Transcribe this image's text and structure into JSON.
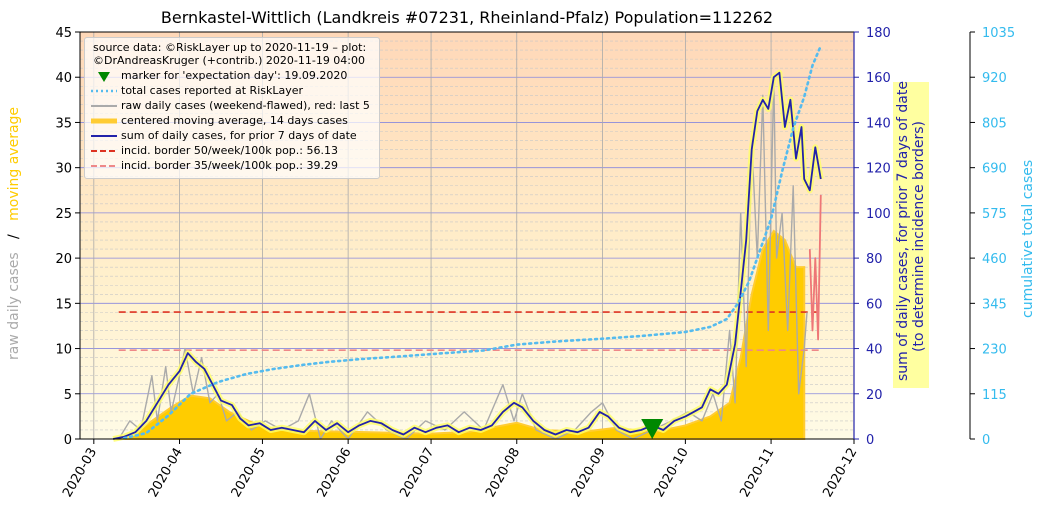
{
  "title": "Bernkastel-Wittlich (Landkreis #07231, Rheinland-Pfalz) Population=112262",
  "axes": {
    "left_label_raw": "raw daily cases",
    "left_label_sep": "/",
    "left_label_ma": "moving average",
    "right1_label_line1": "sum of daily cases, for prior 7 days of date",
    "right1_label_line2": "(to determine incidence borders)",
    "right2_label": "cumulative total cases"
  },
  "legend": {
    "source_line1": "source data: ©RiskLayer up to 2020-11-19 – plot:",
    "source_line2": "©DrAndreasKruger (+contrib.) 2020-11-19 04:00",
    "items": [
      {
        "label": "marker for 'expectation day': 19.09.2020",
        "kind": "marker",
        "color": "#008800"
      },
      {
        "label": "total cases reported at RiskLayer",
        "kind": "dotted",
        "color": "#55bbee"
      },
      {
        "label": "raw daily cases (weekend-flawed), red: last 5",
        "kind": "line",
        "color": "#aaaaaa"
      },
      {
        "label": "centered moving average, 14 days cases",
        "kind": "thick",
        "color": "#ffcc33"
      },
      {
        "label": "sum of daily cases, for prior 7 days of date",
        "kind": "line",
        "color": "#2222aa"
      },
      {
        "label": "incid. border 50/week/100k pop.: 56.13",
        "kind": "dashed",
        "color": "#dd3322"
      },
      {
        "label": "incid. border 35/week/100k pop.: 39.29",
        "kind": "dashed",
        "color": "#ee8888"
      }
    ]
  },
  "chart_data": {
    "type": "line",
    "title": "Bernkastel-Wittlich (Landkreis #07231, Rheinland-Pfalz) Population=112262",
    "x_ticks": [
      "2020-03",
      "2020-04",
      "2020-05",
      "2020-06",
      "2020-07",
      "2020-08",
      "2020-09",
      "2020-10",
      "2020-11",
      "2020-12"
    ],
    "x_range": [
      "2020-02-25",
      "2020-12-01"
    ],
    "y_left": {
      "label": "raw daily cases / moving average",
      "range": [
        0,
        45
      ],
      "ticks": [
        0,
        5,
        10,
        15,
        20,
        25,
        30,
        35,
        40,
        45
      ]
    },
    "y_right1": {
      "label": "sum of daily cases, for prior 7 days of date (to determine incidence borders)",
      "range": [
        0,
        180
      ],
      "ticks": [
        0,
        20,
        40,
        60,
        80,
        100,
        120,
        140,
        160,
        180
      ]
    },
    "y_right2": {
      "label": "cumulative total cases",
      "range": [
        0,
        1035
      ],
      "ticks": [
        0,
        115,
        230,
        345,
        460,
        575,
        690,
        805,
        920,
        1035
      ]
    },
    "grid": true,
    "legend_position": "top-left",
    "expectation_day": "2020-09-19",
    "incidence_borders": [
      {
        "name": "incid. border 50/week/100k pop.: 56.13",
        "value_sum7": 56.13,
        "color": "#dd3322"
      },
      {
        "name": "incid. border 35/week/100k pop.: 39.29",
        "value_sum7": 39.29,
        "color": "#ee8888"
      }
    ],
    "border_span": [
      "2020-03-10",
      "2020-11-19"
    ],
    "series": [
      {
        "name": "sum of daily cases, for prior 7 days of date",
        "axis": "right1",
        "color": "#2222aa",
        "points": [
          [
            "2020-03-08",
            0
          ],
          [
            "2020-03-12",
            1
          ],
          [
            "2020-03-16",
            3
          ],
          [
            "2020-03-20",
            8
          ],
          [
            "2020-03-24",
            16
          ],
          [
            "2020-03-28",
            24
          ],
          [
            "2020-04-01",
            30
          ],
          [
            "2020-04-04",
            38
          ],
          [
            "2020-04-07",
            34
          ],
          [
            "2020-04-10",
            31
          ],
          [
            "2020-04-13",
            24
          ],
          [
            "2020-04-16",
            17
          ],
          [
            "2020-04-20",
            15
          ],
          [
            "2020-04-23",
            9
          ],
          [
            "2020-04-26",
            6
          ],
          [
            "2020-04-30",
            7
          ],
          [
            "2020-05-04",
            4
          ],
          [
            "2020-05-08",
            5
          ],
          [
            "2020-05-12",
            4
          ],
          [
            "2020-05-16",
            3
          ],
          [
            "2020-05-20",
            8
          ],
          [
            "2020-05-24",
            4
          ],
          [
            "2020-05-28",
            7
          ],
          [
            "2020-06-01",
            3
          ],
          [
            "2020-06-05",
            6
          ],
          [
            "2020-06-09",
            8
          ],
          [
            "2020-06-13",
            7
          ],
          [
            "2020-06-17",
            4
          ],
          [
            "2020-06-21",
            2
          ],
          [
            "2020-06-25",
            5
          ],
          [
            "2020-06-29",
            3
          ],
          [
            "2020-07-03",
            5
          ],
          [
            "2020-07-07",
            6
          ],
          [
            "2020-07-11",
            3
          ],
          [
            "2020-07-15",
            5
          ],
          [
            "2020-07-19",
            4
          ],
          [
            "2020-07-23",
            6
          ],
          [
            "2020-07-27",
            12
          ],
          [
            "2020-07-31",
            16
          ],
          [
            "2020-08-03",
            14
          ],
          [
            "2020-08-07",
            8
          ],
          [
            "2020-08-11",
            4
          ],
          [
            "2020-08-15",
            2
          ],
          [
            "2020-08-19",
            4
          ],
          [
            "2020-08-23",
            3
          ],
          [
            "2020-08-27",
            5
          ],
          [
            "2020-08-31",
            12
          ],
          [
            "2020-09-03",
            10
          ],
          [
            "2020-09-07",
            5
          ],
          [
            "2020-09-11",
            3
          ],
          [
            "2020-09-15",
            4
          ],
          [
            "2020-09-19",
            6
          ],
          [
            "2020-09-23",
            4
          ],
          [
            "2020-09-27",
            8
          ],
          [
            "2020-10-01",
            10
          ],
          [
            "2020-10-04",
            12
          ],
          [
            "2020-10-07",
            14
          ],
          [
            "2020-10-10",
            22
          ],
          [
            "2020-10-13",
            20
          ],
          [
            "2020-10-16",
            24
          ],
          [
            "2020-10-19",
            42
          ],
          [
            "2020-10-21",
            65
          ],
          [
            "2020-10-23",
            88
          ],
          [
            "2020-10-25",
            128
          ],
          [
            "2020-10-27",
            145
          ],
          [
            "2020-10-29",
            150
          ],
          [
            "2020-10-31",
            146
          ],
          [
            "2020-11-02",
            160
          ],
          [
            "2020-11-04",
            162
          ],
          [
            "2020-11-06",
            138
          ],
          [
            "2020-11-08",
            150
          ],
          [
            "2020-11-10",
            124
          ],
          [
            "2020-11-12",
            138
          ],
          [
            "2020-11-13",
            115
          ],
          [
            "2020-11-15",
            110
          ],
          [
            "2020-11-17",
            129
          ],
          [
            "2020-11-19",
            115
          ]
        ]
      },
      {
        "name": "total cases reported at RiskLayer",
        "axis": "right2",
        "color": "#55bbee",
        "points": [
          [
            "2020-03-12",
            2
          ],
          [
            "2020-03-20",
            15
          ],
          [
            "2020-03-28",
            60
          ],
          [
            "2020-04-05",
            115
          ],
          [
            "2020-04-15",
            145
          ],
          [
            "2020-04-25",
            165
          ],
          [
            "2020-05-05",
            178
          ],
          [
            "2020-05-15",
            188
          ],
          [
            "2020-05-25",
            196
          ],
          [
            "2020-06-05",
            203
          ],
          [
            "2020-06-20",
            210
          ],
          [
            "2020-07-05",
            218
          ],
          [
            "2020-07-20",
            225
          ],
          [
            "2020-08-01",
            240
          ],
          [
            "2020-08-15",
            248
          ],
          [
            "2020-09-01",
            255
          ],
          [
            "2020-09-15",
            262
          ],
          [
            "2020-10-01",
            272
          ],
          [
            "2020-10-10",
            285
          ],
          [
            "2020-10-16",
            305
          ],
          [
            "2020-10-20",
            345
          ],
          [
            "2020-10-24",
            400
          ],
          [
            "2020-10-28",
            480
          ],
          [
            "2020-11-01",
            560
          ],
          [
            "2020-11-05",
            680
          ],
          [
            "2020-11-09",
            790
          ],
          [
            "2020-11-13",
            870
          ],
          [
            "2020-11-16",
            950
          ],
          [
            "2020-11-19",
            1000
          ]
        ]
      },
      {
        "name": "centered moving average, 14 days cases",
        "axis": "left",
        "color": "#ffcc00",
        "points": [
          [
            "2020-03-08",
            0
          ],
          [
            "2020-03-15",
            0.5
          ],
          [
            "2020-03-22",
            2
          ],
          [
            "2020-03-29",
            3.5
          ],
          [
            "2020-04-05",
            4.8
          ],
          [
            "2020-04-12",
            4.5
          ],
          [
            "2020-04-19",
            3
          ],
          [
            "2020-04-26",
            2
          ],
          [
            "2020-05-03",
            1.2
          ],
          [
            "2020-05-15",
            0.9
          ],
          [
            "2020-06-01",
            0.8
          ],
          [
            "2020-06-15",
            0.7
          ],
          [
            "2020-07-01",
            0.6
          ],
          [
            "2020-07-15",
            0.8
          ],
          [
            "2020-08-01",
            1.8
          ],
          [
            "2020-08-10",
            1
          ],
          [
            "2020-08-25",
            0.8
          ],
          [
            "2020-09-05",
            1.2
          ],
          [
            "2020-09-20",
            0.8
          ],
          [
            "2020-10-01",
            1.5
          ],
          [
            "2020-10-10",
            2.5
          ],
          [
            "2020-10-17",
            4
          ],
          [
            "2020-10-21",
            9
          ],
          [
            "2020-10-25",
            16
          ],
          [
            "2020-10-29",
            21
          ],
          [
            "2020-11-02",
            23
          ],
          [
            "2020-11-06",
            22
          ],
          [
            "2020-11-10",
            19
          ],
          [
            "2020-11-13",
            19
          ]
        ]
      },
      {
        "name": "raw daily cases (weekend-flawed), red: last 5",
        "axis": "left",
        "color": "#aaaaaa",
        "points": [
          [
            "2020-03-10",
            0
          ],
          [
            "2020-03-14",
            2
          ],
          [
            "2020-03-18",
            1
          ],
          [
            "2020-03-22",
            7
          ],
          [
            "2020-03-24",
            2
          ],
          [
            "2020-03-27",
            8
          ],
          [
            "2020-03-29",
            3
          ],
          [
            "2020-04-01",
            7
          ],
          [
            "2020-04-03",
            10
          ],
          [
            "2020-04-06",
            5
          ],
          [
            "2020-04-09",
            9
          ],
          [
            "2020-04-12",
            4
          ],
          [
            "2020-04-15",
            5
          ],
          [
            "2020-04-18",
            2
          ],
          [
            "2020-04-22",
            3
          ],
          [
            "2020-04-27",
            1
          ],
          [
            "2020-05-02",
            2
          ],
          [
            "2020-05-08",
            1
          ],
          [
            "2020-05-14",
            2
          ],
          [
            "2020-05-18",
            5
          ],
          [
            "2020-05-22",
            0
          ],
          [
            "2020-05-26",
            2
          ],
          [
            "2020-06-01",
            0
          ],
          [
            "2020-06-08",
            3
          ],
          [
            "2020-06-15",
            1
          ],
          [
            "2020-06-22",
            0
          ],
          [
            "2020-06-29",
            2
          ],
          [
            "2020-07-06",
            1
          ],
          [
            "2020-07-13",
            3
          ],
          [
            "2020-07-20",
            1
          ],
          [
            "2020-07-27",
            6
          ],
          [
            "2020-07-31",
            2
          ],
          [
            "2020-08-03",
            5
          ],
          [
            "2020-08-08",
            1
          ],
          [
            "2020-08-15",
            0
          ],
          [
            "2020-08-22",
            1
          ],
          [
            "2020-08-28",
            3
          ],
          [
            "2020-09-01",
            4
          ],
          [
            "2020-09-06",
            1
          ],
          [
            "2020-09-12",
            0
          ],
          [
            "2020-09-19",
            1
          ],
          [
            "2020-09-26",
            2
          ],
          [
            "2020-10-02",
            3
          ],
          [
            "2020-10-07",
            2
          ],
          [
            "2020-10-11",
            5
          ],
          [
            "2020-10-14",
            2
          ],
          [
            "2020-10-17",
            12
          ],
          [
            "2020-10-19",
            4
          ],
          [
            "2020-10-21",
            25
          ],
          [
            "2020-10-23",
            8
          ],
          [
            "2020-10-25",
            33
          ],
          [
            "2020-10-27",
            20
          ],
          [
            "2020-10-29",
            38
          ],
          [
            "2020-10-31",
            12
          ],
          [
            "2020-11-02",
            40
          ],
          [
            "2020-11-03",
            20
          ],
          [
            "2020-11-05",
            25
          ],
          [
            "2020-11-07",
            12
          ],
          [
            "2020-11-09",
            28
          ],
          [
            "2020-11-11",
            5
          ],
          [
            "2020-11-13",
            10
          ],
          [
            "2020-11-14",
            14
          ]
        ]
      },
      {
        "name": "raw daily cases, last 5",
        "axis": "left",
        "color": "#ee7777",
        "points": [
          [
            "2020-11-15",
            21
          ],
          [
            "2020-11-16",
            12
          ],
          [
            "2020-11-17",
            20
          ],
          [
            "2020-11-18",
            11
          ],
          [
            "2020-11-19",
            27
          ]
        ]
      }
    ]
  }
}
